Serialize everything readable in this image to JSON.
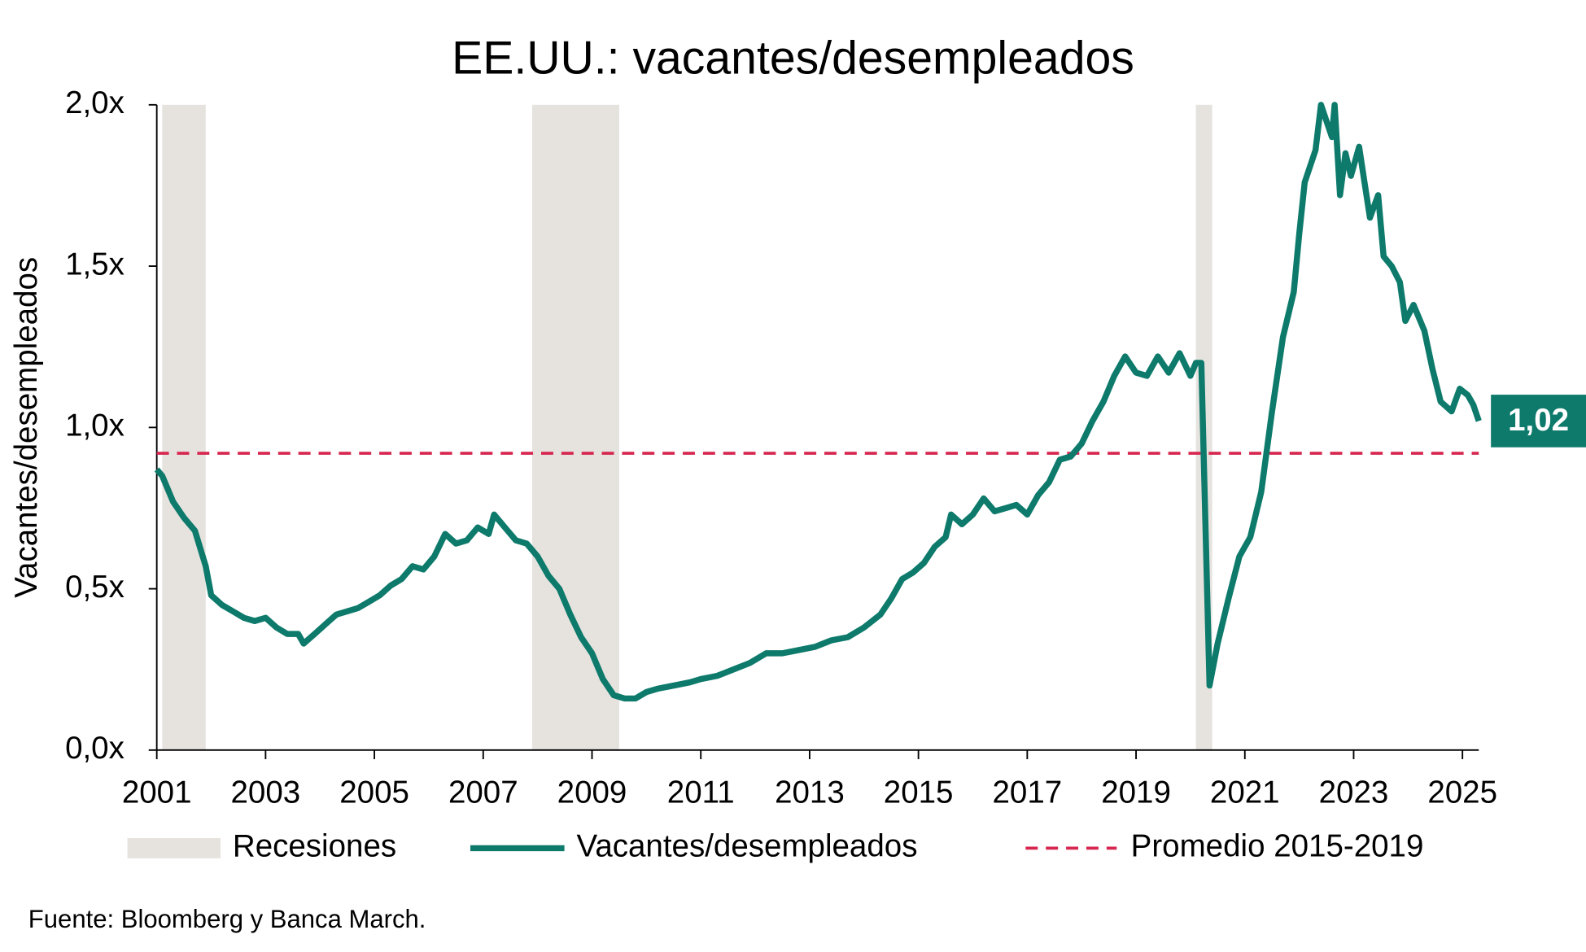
{
  "chart_data": {
    "type": "line",
    "title": "EE.UU.: vacantes/desempleados",
    "y_label": "Vacantes/desempleados",
    "source": "Fuente: Bloomberg y Banca March.",
    "xlim": [
      2001,
      2025.3
    ],
    "xticks": [
      2001,
      2003,
      2005,
      2007,
      2009,
      2011,
      2013,
      2015,
      2017,
      2019,
      2021,
      2023,
      2025
    ],
    "ylim": [
      0,
      2
    ],
    "yticks": [
      {
        "value": 0,
        "label": "0,0x"
      },
      {
        "value": 0.5,
        "label": "0,5x"
      },
      {
        "value": 1,
        "label": "1,0x"
      },
      {
        "value": 1.5,
        "label": "1,5x"
      },
      {
        "value": 2,
        "label": "2,0x"
      }
    ],
    "recessions": {
      "name": "Recesiones",
      "color": "#e6e3df",
      "spans": [
        [
          2001.1,
          2001.9
        ],
        [
          2007.9,
          2009.5
        ],
        [
          2020.1,
          2020.4
        ]
      ]
    },
    "reference": {
      "name": "Promedio 2015-2019",
      "color": "#d6264f",
      "value": 0.92
    },
    "series": [
      {
        "name": "Vacantes/desempleados",
        "color": "#0d7a6b",
        "x": [
          2001.0,
          2001.1,
          2001.3,
          2001.5,
          2001.7,
          2001.9,
          2002.0,
          2002.2,
          2002.4,
          2002.6,
          2002.8,
          2003.0,
          2003.2,
          2003.4,
          2003.6,
          2003.7,
          2003.9,
          2004.1,
          2004.3,
          2004.5,
          2004.7,
          2004.9,
          2005.1,
          2005.3,
          2005.5,
          2005.7,
          2005.9,
          2006.1,
          2006.3,
          2006.5,
          2006.7,
          2006.9,
          2007.1,
          2007.2,
          2007.4,
          2007.6,
          2007.8,
          2008.0,
          2008.2,
          2008.4,
          2008.6,
          2008.8,
          2009.0,
          2009.2,
          2009.4,
          2009.6,
          2009.8,
          2010.0,
          2010.2,
          2010.5,
          2010.8,
          2011.0,
          2011.3,
          2011.6,
          2011.9,
          2012.2,
          2012.5,
          2012.8,
          2013.1,
          2013.4,
          2013.7,
          2014.0,
          2014.3,
          2014.5,
          2014.7,
          2014.9,
          2015.1,
          2015.3,
          2015.5,
          2015.6,
          2015.8,
          2016.0,
          2016.2,
          2016.4,
          2016.6,
          2016.8,
          2017.0,
          2017.2,
          2017.4,
          2017.6,
          2017.8,
          2018.0,
          2018.2,
          2018.4,
          2018.6,
          2018.8,
          2019.0,
          2019.2,
          2019.4,
          2019.6,
          2019.8,
          2020.0,
          2020.1,
          2020.2,
          2020.35,
          2020.5,
          2020.7,
          2020.9,
          2021.1,
          2021.3,
          2021.5,
          2021.7,
          2021.9,
          2022.0,
          2022.1,
          2022.3,
          2022.4,
          2022.5,
          2022.6,
          2022.65,
          2022.75,
          2022.85,
          2022.95,
          2023.1,
          2023.2,
          2023.3,
          2023.45,
          2023.55,
          2023.7,
          2023.85,
          2023.95,
          2024.1,
          2024.3,
          2024.45,
          2024.6,
          2024.8,
          2024.95,
          2025.1,
          2025.2,
          2025.3
        ],
        "values": [
          0.87,
          0.85,
          0.77,
          0.72,
          0.68,
          0.57,
          0.48,
          0.45,
          0.43,
          0.41,
          0.4,
          0.41,
          0.38,
          0.36,
          0.36,
          0.33,
          0.36,
          0.39,
          0.42,
          0.43,
          0.44,
          0.46,
          0.48,
          0.51,
          0.53,
          0.57,
          0.56,
          0.6,
          0.67,
          0.64,
          0.65,
          0.69,
          0.67,
          0.73,
          0.69,
          0.65,
          0.64,
          0.6,
          0.54,
          0.5,
          0.42,
          0.35,
          0.3,
          0.22,
          0.17,
          0.16,
          0.16,
          0.18,
          0.19,
          0.2,
          0.21,
          0.22,
          0.23,
          0.25,
          0.27,
          0.3,
          0.3,
          0.31,
          0.32,
          0.34,
          0.35,
          0.38,
          0.42,
          0.47,
          0.53,
          0.55,
          0.58,
          0.63,
          0.66,
          0.73,
          0.7,
          0.73,
          0.78,
          0.74,
          0.75,
          0.76,
          0.73,
          0.79,
          0.83,
          0.9,
          0.91,
          0.95,
          1.02,
          1.08,
          1.16,
          1.22,
          1.17,
          1.16,
          1.22,
          1.17,
          1.23,
          1.16,
          1.2,
          1.2,
          0.2,
          0.33,
          0.47,
          0.6,
          0.66,
          0.8,
          1.05,
          1.28,
          1.42,
          1.6,
          1.76,
          1.86,
          2.0,
          1.95,
          1.9,
          2.0,
          1.72,
          1.85,
          1.78,
          1.87,
          1.76,
          1.65,
          1.72,
          1.53,
          1.5,
          1.45,
          1.33,
          1.38,
          1.3,
          1.18,
          1.08,
          1.05,
          1.12,
          1.1,
          1.07,
          1.02
        ],
        "value_labels": [
          null,
          null,
          null,
          null,
          null,
          null,
          null,
          null,
          null,
          null,
          null,
          null,
          null,
          null,
          null,
          null,
          null,
          null,
          null,
          null,
          null,
          null,
          null,
          null,
          null,
          null,
          null,
          null,
          null,
          null,
          null,
          null,
          null,
          null,
          null,
          null,
          null,
          null,
          null,
          null,
          null,
          null,
          null,
          null,
          null,
          null,
          null,
          null,
          null,
          null,
          null,
          null,
          null,
          null,
          null,
          null,
          null,
          null,
          null,
          null,
          null,
          null,
          null,
          null,
          null,
          null,
          null,
          null,
          null,
          null,
          null,
          null,
          null,
          null,
          null,
          null,
          null,
          null,
          null,
          null,
          null,
          null,
          null,
          null,
          null,
          null,
          null,
          null,
          null,
          null,
          null,
          null,
          null,
          null,
          null,
          null,
          null,
          null,
          null,
          null,
          null,
          null,
          null,
          null,
          null,
          null,
          null,
          null,
          null,
          null,
          null,
          null,
          null,
          null,
          null,
          null,
          null,
          null,
          null,
          null,
          null,
          null,
          null,
          null,
          null,
          null,
          null,
          null,
          null,
          "1,02"
        ]
      }
    ]
  }
}
